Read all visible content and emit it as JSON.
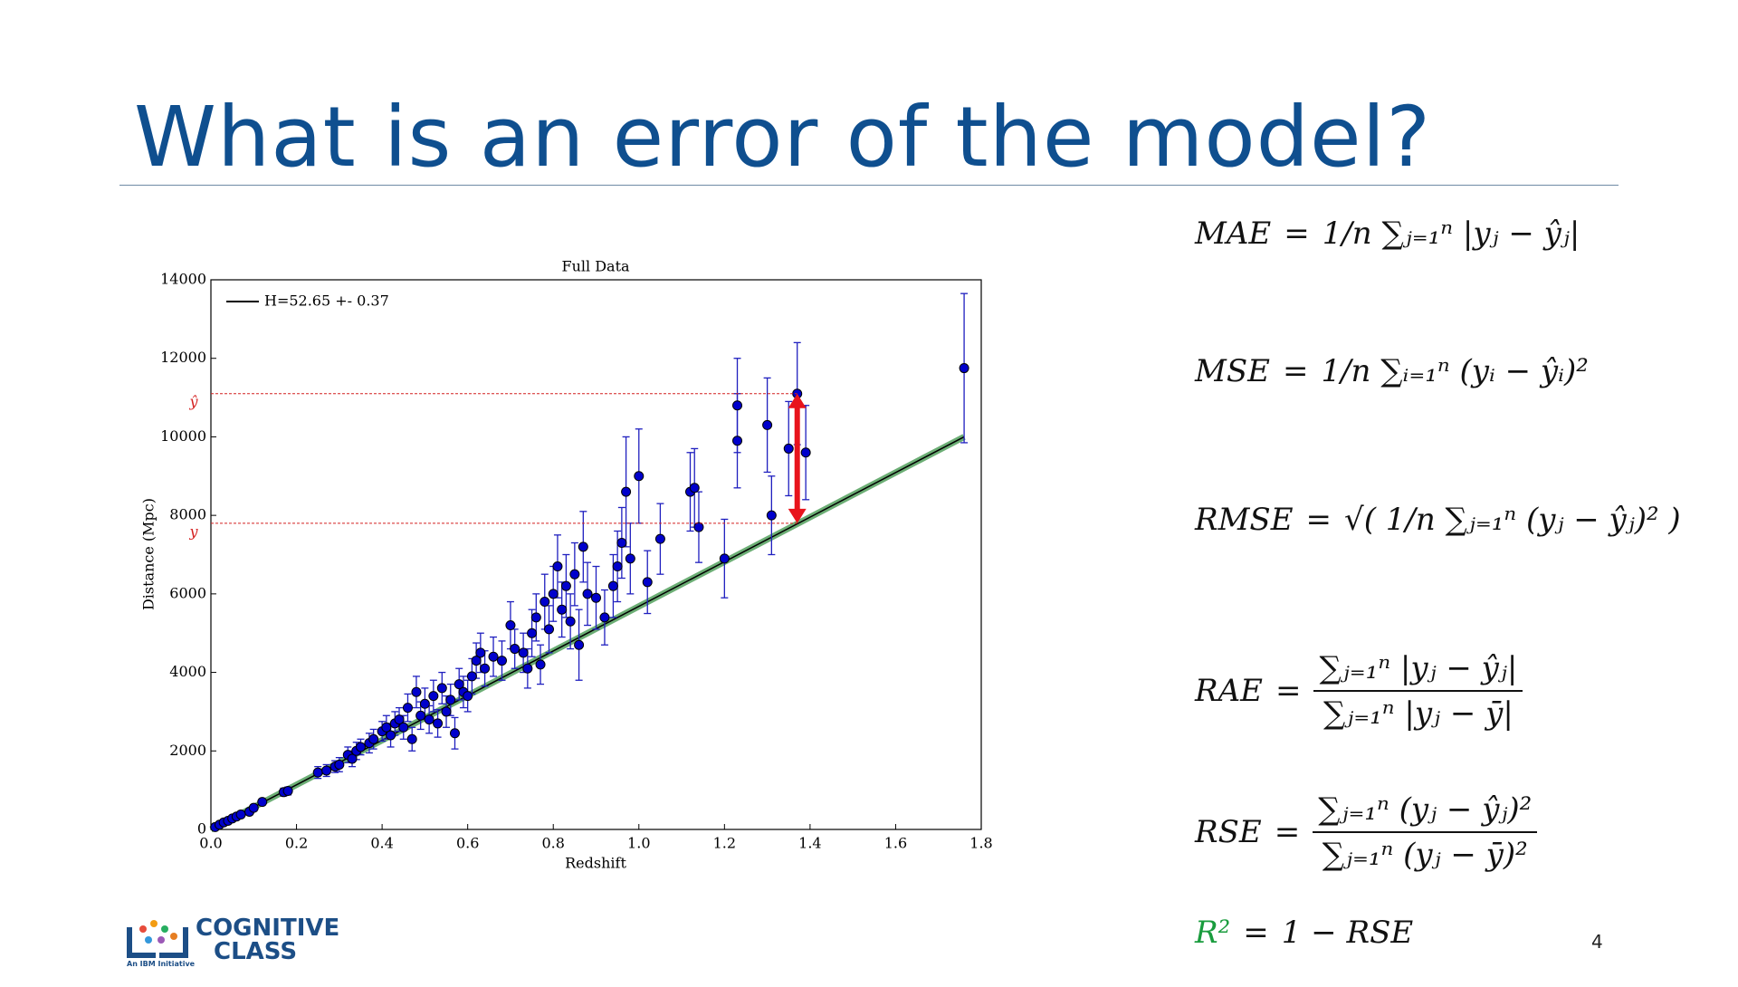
{
  "slide": {
    "title": "What is an error of the model?",
    "page": "4",
    "logo": {
      "name": "COGNITIVE",
      "sub": "CLASS",
      "tagline": "An IBM Initiative"
    },
    "formulas": [
      {
        "lhs": "MAE",
        "rhs": "1/n ∑ⱼ₌₁ⁿ |yⱼ − ŷⱼ|"
      },
      {
        "lhs": "MSE",
        "rhs": "1/n ∑ᵢ₌₁ⁿ (yᵢ − ŷᵢ)²"
      },
      {
        "lhs": "RMSE",
        "rhs": "√( 1/n ∑ⱼ₌₁ⁿ (yⱼ − ŷⱼ)² )"
      },
      {
        "lhs": "RAE",
        "num": "∑ⱼ₌₁ⁿ |yⱼ − ŷⱼ|",
        "den": "∑ⱼ₌₁ⁿ |yⱼ − ȳ|"
      },
      {
        "lhs": "RSE",
        "num": "∑ⱼ₌₁ⁿ (yⱼ − ŷⱼ)²",
        "den": "∑ⱼ₌₁ⁿ (yⱼ − ȳ)²"
      },
      {
        "lhs": "R²",
        "rhs": "1 − RSE",
        "color": "#1a9c3e"
      }
    ]
  },
  "chart_data": {
    "type": "scatter",
    "title": "Full Data",
    "x_label": "Redshift",
    "y_label": "Distance (Mpc)",
    "color": "#0000cc",
    "error_color": "#1f1fbf",
    "x": [
      0.01,
      0.02,
      0.03,
      0.04,
      0.05,
      0.06,
      0.07,
      0.09,
      0.1,
      0.12,
      0.17,
      0.18,
      0.25,
      0.27,
      0.29,
      0.3,
      0.32,
      0.33,
      0.34,
      0.35,
      0.37,
      0.38,
      0.4,
      0.41,
      0.42,
      0.43,
      0.44,
      0.45,
      0.46,
      0.47,
      0.48,
      0.49,
      0.5,
      0.51,
      0.52,
      0.53,
      0.54,
      0.55,
      0.56,
      0.57,
      0.58,
      0.59,
      0.6,
      0.61,
      0.62,
      0.63,
      0.64,
      0.66,
      0.68,
      0.7,
      0.71,
      0.73,
      0.74,
      0.75,
      0.76,
      0.77,
      0.78,
      0.79,
      0.8,
      0.81,
      0.82,
      0.83,
      0.84,
      0.85,
      0.86,
      0.87,
      0.88,
      0.9,
      0.92,
      0.94,
      0.95,
      0.96,
      0.97,
      0.98,
      1.0,
      1.02,
      1.05,
      1.12,
      1.13,
      1.14,
      1.2,
      1.23,
      1.23,
      1.3,
      1.31,
      1.35,
      1.37,
      1.39,
      1.76
    ],
    "values": [
      60,
      120,
      180,
      220,
      280,
      330,
      380,
      450,
      550,
      700,
      950,
      980,
      1450,
      1500,
      1600,
      1650,
      1900,
      1800,
      2000,
      2100,
      2200,
      2300,
      2500,
      2600,
      2400,
      2700,
      2800,
      2600,
      3100,
      2300,
      3500,
      2900,
      3200,
      2800,
      3400,
      2700,
      3600,
      3000,
      3300,
      2450,
      3700,
      3500,
      3400,
      3900,
      4300,
      4500,
      4100,
      4400,
      4300,
      5200,
      4600,
      4500,
      4100,
      5000,
      5400,
      4200,
      5800,
      5100,
      6000,
      6700,
      5600,
      6200,
      5300,
      6500,
      4700,
      7200,
      6000,
      5900,
      5400,
      6200,
      6700,
      7300,
      8600,
      6900,
      9000,
      6300,
      7400,
      8600,
      8700,
      7700,
      6900,
      10800,
      9900,
      10300,
      8000,
      9700,
      11100,
      9600,
      11750
    ],
    "errors": [
      30,
      40,
      50,
      60,
      60,
      60,
      80,
      80,
      80,
      80,
      100,
      100,
      150,
      150,
      150,
      180,
      200,
      200,
      220,
      200,
      250,
      250,
      250,
      300,
      300,
      300,
      300,
      300,
      350,
      300,
      400,
      350,
      400,
      350,
      400,
      350,
      400,
      400,
      400,
      400,
      400,
      400,
      400,
      450,
      450,
      500,
      450,
      500,
      500,
      600,
      500,
      500,
      500,
      600,
      600,
      500,
      700,
      600,
      700,
      800,
      700,
      800,
      700,
      800,
      900,
      900,
      800,
      800,
      700,
      800,
      900,
      900,
      1400,
      900,
      1200,
      800,
      900,
      1000,
      1000,
      900,
      1000,
      1200,
      1200,
      1200,
      1000,
      1200,
      1300,
      1200,
      1900
    ],
    "fit": {
      "name": "H=52.65 +- 0.37",
      "x": [
        0,
        1.76
      ],
      "y": [
        0,
        10000
      ],
      "color": "#000000",
      "band_color": "#2e8b3a"
    },
    "annotations": [
      {
        "text": "ŷ",
        "y": 11100
      },
      {
        "text": "y",
        "y": 7800
      }
    ],
    "annotation_color": "#d42020",
    "arrow_x": 1.37,
    "xlim": [
      0,
      1.8
    ],
    "ylim": [
      0,
      14000
    ],
    "xticks": [
      {
        "value": 0,
        "label": "0.0"
      },
      0.2,
      0.4,
      0.6,
      0.8,
      {
        "value": 1,
        "label": "1.0"
      },
      1.2,
      1.4,
      1.6,
      1.8
    ],
    "yticks": [
      0,
      2000,
      4000,
      6000,
      8000,
      10000,
      12000,
      14000
    ]
  }
}
